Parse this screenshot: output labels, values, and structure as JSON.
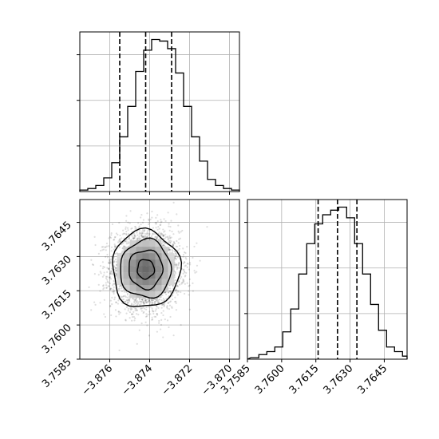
{
  "chart_data": [
    {
      "type": "histogram",
      "panel": "top-left",
      "xlabel": "",
      "ylabel": "",
      "xlim": [
        -3.8775,
        -3.8695
      ],
      "bin_width": 0.0004,
      "bins_x": [
        -3.8775,
        -3.8771,
        -3.8767,
        -3.8763,
        -3.8759,
        -3.8755,
        -3.8751,
        -3.8747,
        -3.8743,
        -3.8739,
        -3.8735,
        -3.8731,
        -3.8727,
        -3.8723,
        -3.8719,
        -3.8715,
        -3.8711,
        -3.8707,
        -3.8703,
        -3.8699
      ],
      "counts": [
        0.01,
        0.02,
        0.04,
        0.09,
        0.19,
        0.36,
        0.56,
        0.79,
        0.93,
        1.0,
        0.99,
        0.94,
        0.78,
        0.56,
        0.36,
        0.2,
        0.08,
        0.04,
        0.02,
        0.01
      ],
      "quantile_lines": [
        -3.8755,
        -3.8742,
        -3.8729
      ],
      "x_ticks": [
        -3.876,
        -3.874,
        -3.872,
        -3.87
      ],
      "y_ticks": [
        0.3,
        0.6,
        0.9
      ],
      "grid": true
    },
    {
      "type": "histogram",
      "panel": "bottom-right",
      "xlabel": "",
      "ylabel": "",
      "xlim": [
        3.7585,
        3.7655
      ],
      "bin_width": 0.00035,
      "bins_x": [
        3.75865,
        3.759,
        3.75935,
        3.7597,
        3.76005,
        3.7604,
        3.76075,
        3.7611,
        3.76145,
        3.7618,
        3.76215,
        3.7625,
        3.76285,
        3.7632,
        3.76355,
        3.7639,
        3.76425,
        3.7646,
        3.76495,
        3.7653
      ],
      "counts": [
        0.01,
        0.03,
        0.05,
        0.08,
        0.18,
        0.33,
        0.56,
        0.76,
        0.89,
        0.95,
        0.98,
        1.0,
        0.93,
        0.76,
        0.56,
        0.36,
        0.19,
        0.08,
        0.05,
        0.02
      ],
      "quantile_lines": [
        3.7616,
        3.76245,
        3.7633
      ],
      "x_ticks_labels": [
        "3.7585",
        "3.7600",
        "3.7615",
        "3.7630",
        "3.7645"
      ],
      "x_ticks": [
        3.7585,
        3.76,
        3.7615,
        3.763,
        3.7645
      ],
      "y_ticks": [
        0.3,
        0.6,
        0.9
      ],
      "grid": true
    },
    {
      "type": "scatter-contour",
      "panel": "bottom-left",
      "xlim": [
        -3.8775,
        -3.8695
      ],
      "ylim": [
        3.7585,
        3.7655
      ],
      "center": [
        -3.8742,
        3.76245
      ],
      "sigma": [
        0.00085,
        0.00085
      ],
      "contour_levels_sigma": [
        0.5,
        1.0,
        1.5,
        2.0
      ],
      "n_points": 3500,
      "x_ticks": [
        -3.876,
        -3.874,
        -3.872,
        -3.87
      ],
      "x_ticks_labels": [
        "−3.876",
        "−3.874",
        "−3.872",
        "−3.870"
      ],
      "y_ticks": [
        3.7585,
        3.76,
        3.7615,
        3.763,
        3.7645
      ],
      "y_ticks_labels": [
        "3.7585",
        "3.7600",
        "3.7615",
        "3.7630",
        "3.7645"
      ],
      "grid": true
    }
  ]
}
